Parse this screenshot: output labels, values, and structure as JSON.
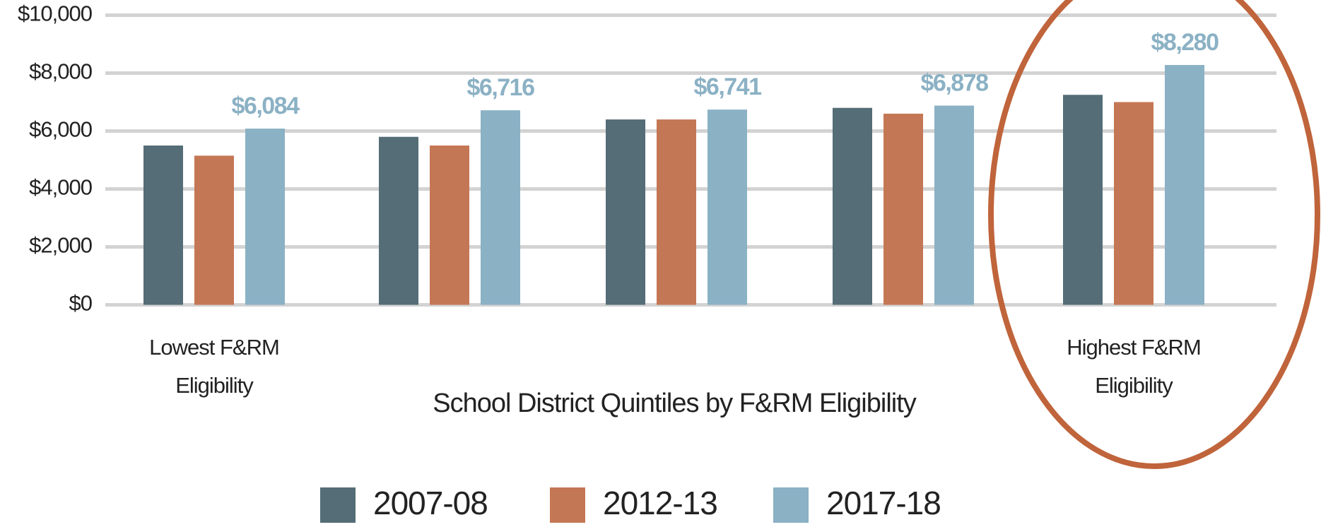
{
  "chart_data": {
    "type": "bar",
    "x_label": "School District Quintiles by F&RM Eligibility",
    "categories": [
      "Lowest F&RM Eligibility",
      null,
      null,
      null,
      "Highest F&RM Eligibility"
    ],
    "series": [
      {
        "name": "2007-08",
        "color": "#546d76",
        "values": [
          5500,
          5800,
          6400,
          6800,
          7250
        ]
      },
      {
        "name": "2012-13",
        "color": "#c47754",
        "values": [
          5150,
          5500,
          6400,
          6600,
          7000
        ]
      },
      {
        "name": "2017-18",
        "color": "#8bb1c4",
        "values": [
          6084,
          6716,
          6741,
          6878,
          8280
        ],
        "value_labels": [
          "$6,084",
          "$6,716",
          "$6,741",
          "$6,878",
          "$8,280"
        ]
      }
    ],
    "ylim": [
      0,
      10000
    ],
    "yticks": [
      {
        "value": 0,
        "label": "$0"
      },
      {
        "value": 2000,
        "label": "$2,000"
      },
      {
        "value": 4000,
        "label": "$4,000"
      },
      {
        "value": 6000,
        "label": "$6,000"
      },
      {
        "value": 8000,
        "label": "$8,000"
      },
      {
        "value": 10000,
        "label": "$10,000"
      }
    ],
    "grid": true
  }
}
